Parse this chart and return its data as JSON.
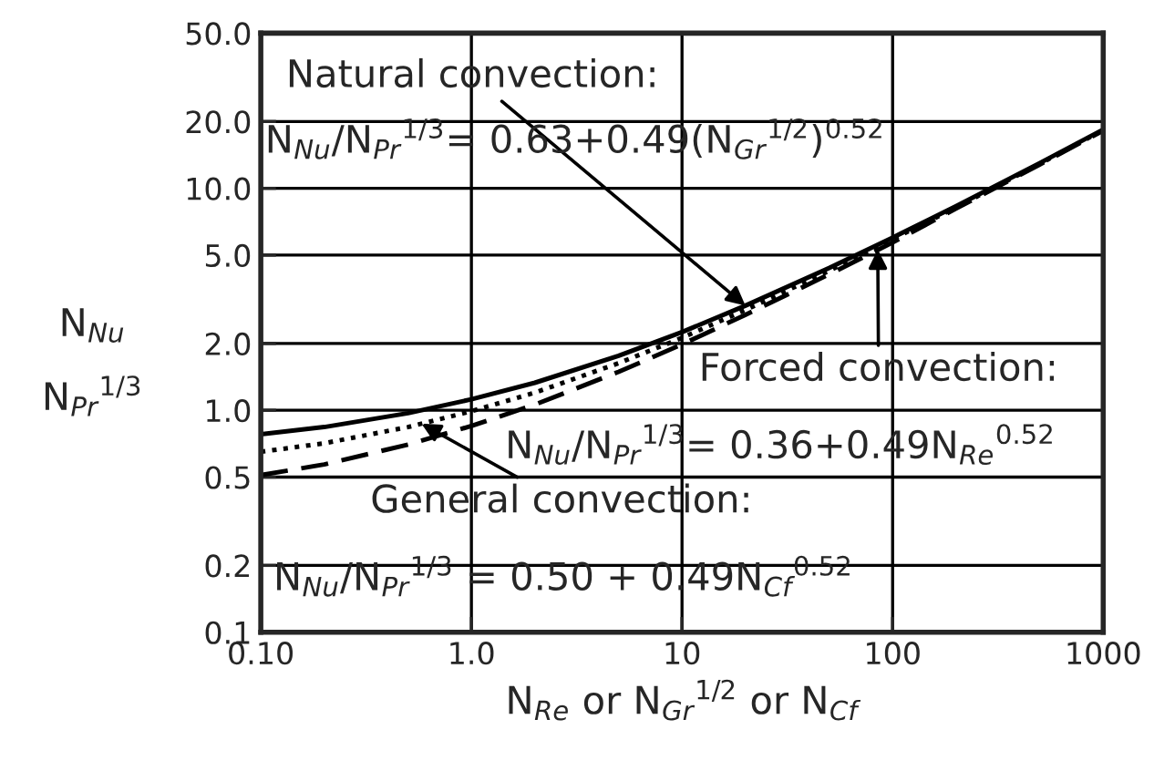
{
  "chart_data": {
    "type": "line",
    "xlabel": "N$_{Re}$ or N$_{Gr}$$^{1/2}$ or N$_{Cf}$",
    "ylabel": "N$_{Nu}$\nN$_{Pr}$$^{1/3}$",
    "x": [
      0.1,
      0.2,
      0.5,
      1,
      2,
      5,
      10,
      20,
      50,
      100,
      200,
      500,
      1000
    ],
    "series": [
      {
        "color": "#000000",
        "line_style": "solid",
        "values": [
          0.78,
          0.84,
          0.97,
          1.12,
          1.33,
          1.76,
          2.25,
          2.96,
          4.38,
          6.0,
          8.3,
          13.0,
          18.4
        ]
      },
      {
        "color": "#000000",
        "line_style": "dashed",
        "values": [
          0.51,
          0.57,
          0.7,
          0.85,
          1.06,
          1.49,
          1.98,
          2.69,
          4.1,
          5.7,
          8.1,
          12.8,
          18.2
        ]
      },
      {
        "color": "#000000",
        "line_style": "dotted",
        "values": [
          0.65,
          0.71,
          0.84,
          0.99,
          1.2,
          1.63,
          2.12,
          2.83,
          4.25,
          5.9,
          8.2,
          12.9,
          18.3
        ]
      }
    ],
    "annotations": [
      {
        "text": "Natural convection:",
        "x": 20,
        "y": 2.96
      },
      "N$_{Nu}$/N$_{Pr}$$^{1/3}$= 0.63+0.49(N$_{Gr}$$^{1/2}$)$^{0.52}$",
      {
        "text": "Forced convection:",
        "x": 85,
        "y": 5.3
      },
      "N$_{Nu}$/N$_{Pr}$$^{1/3}$= 0.36+0.49N$_{Re}$$^{0.52}$",
      {
        "text": "General convection:",
        "x": 0.58,
        "y": 0.87
      },
      "N$_{Nu}$/N$_{Pr}$$^{1/3}$ = 0.50 + 0.49N$_{Cf}$$^{0.52}$"
    ],
    "log": "xy",
    "xlim": [
      0.1,
      1000
    ],
    "ylim": [
      0.1,
      50
    ],
    "xticks": [
      {
        "value": 0.1,
        "label": "0.10"
      },
      {
        "value": 1,
        "label": "1.0"
      },
      10,
      100,
      1000
    ],
    "yticks": [
      0.1,
      0.2,
      0.5,
      {
        "value": 1,
        "label": "1.0"
      },
      {
        "value": 2,
        "label": "2.0"
      },
      {
        "value": 5,
        "label": "5.0"
      },
      {
        "value": 10,
        "label": "10.0"
      },
      {
        "value": 20,
        "label": "20.0"
      },
      {
        "value": 50,
        "label": "50.0"
      }
    ],
    "grid": true,
    "marker": "none"
  }
}
